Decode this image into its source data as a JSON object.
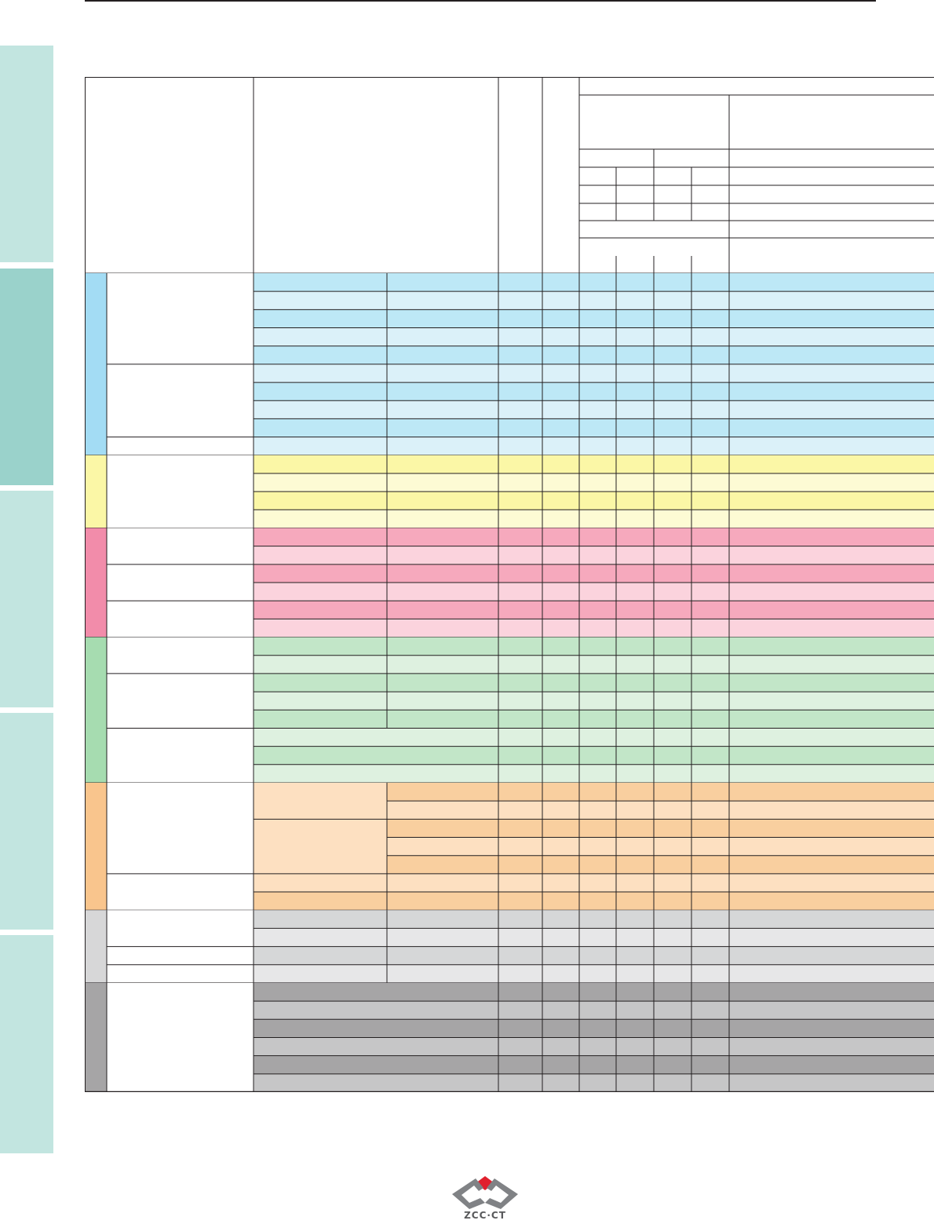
{
  "colors": {
    "side_tab": "#c2e5e0",
    "side_tab_active": "#9ad2cb",
    "rule": "#231f20",
    "table_line": "#231f20",
    "group_blue": {
      "strip": "#a3dcf4",
      "row_a": "#bde8f6",
      "row_b": "#dbf1f9"
    },
    "group_yellow": {
      "strip": "#fbf7a6",
      "row_a": "#fbf7a6",
      "row_b": "#fdfbd4"
    },
    "group_pink": {
      "strip": "#f28caa",
      "row_a": "#f6a9bd",
      "row_b": "#fbd3dd"
    },
    "group_green": {
      "strip": "#a6dcb0",
      "row_a": "#c2e6c8",
      "row_b": "#def1e0"
    },
    "group_orange": {
      "strip": "#f9c58d",
      "row_a": "#f9cf9f",
      "row_b": "#fde0c1"
    },
    "group_lightgray": {
      "strip": "#d7d7d8",
      "row_a": "#d6d7d8",
      "row_b": "#e7e7e8"
    },
    "group_darkgray": {
      "strip": "#a6a5a6",
      "row_a": "#a6a5a6",
      "row_b": "#c6c6c7"
    },
    "logo_red": "#e0202d",
    "logo_gray": "#808285"
  },
  "side_tabs": [
    {
      "id": "tab-1",
      "active": false
    },
    {
      "id": "tab-2",
      "active": true
    },
    {
      "id": "tab-3",
      "active": false
    },
    {
      "id": "tab-4",
      "active": false
    },
    {
      "id": "tab-5",
      "active": false
    }
  ],
  "table": {
    "groups": [
      {
        "id": "blue",
        "rows": 10
      },
      {
        "id": "yellow",
        "rows": 4
      },
      {
        "id": "pink",
        "rows": 6
      },
      {
        "id": "green",
        "rows": 8
      },
      {
        "id": "orange",
        "rows": 7
      },
      {
        "id": "lightgray",
        "rows": 4
      },
      {
        "id": "darkgray",
        "rows": 6
      }
    ],
    "total_rows": 45
  },
  "logo": {
    "text": "ZCC·CT"
  }
}
